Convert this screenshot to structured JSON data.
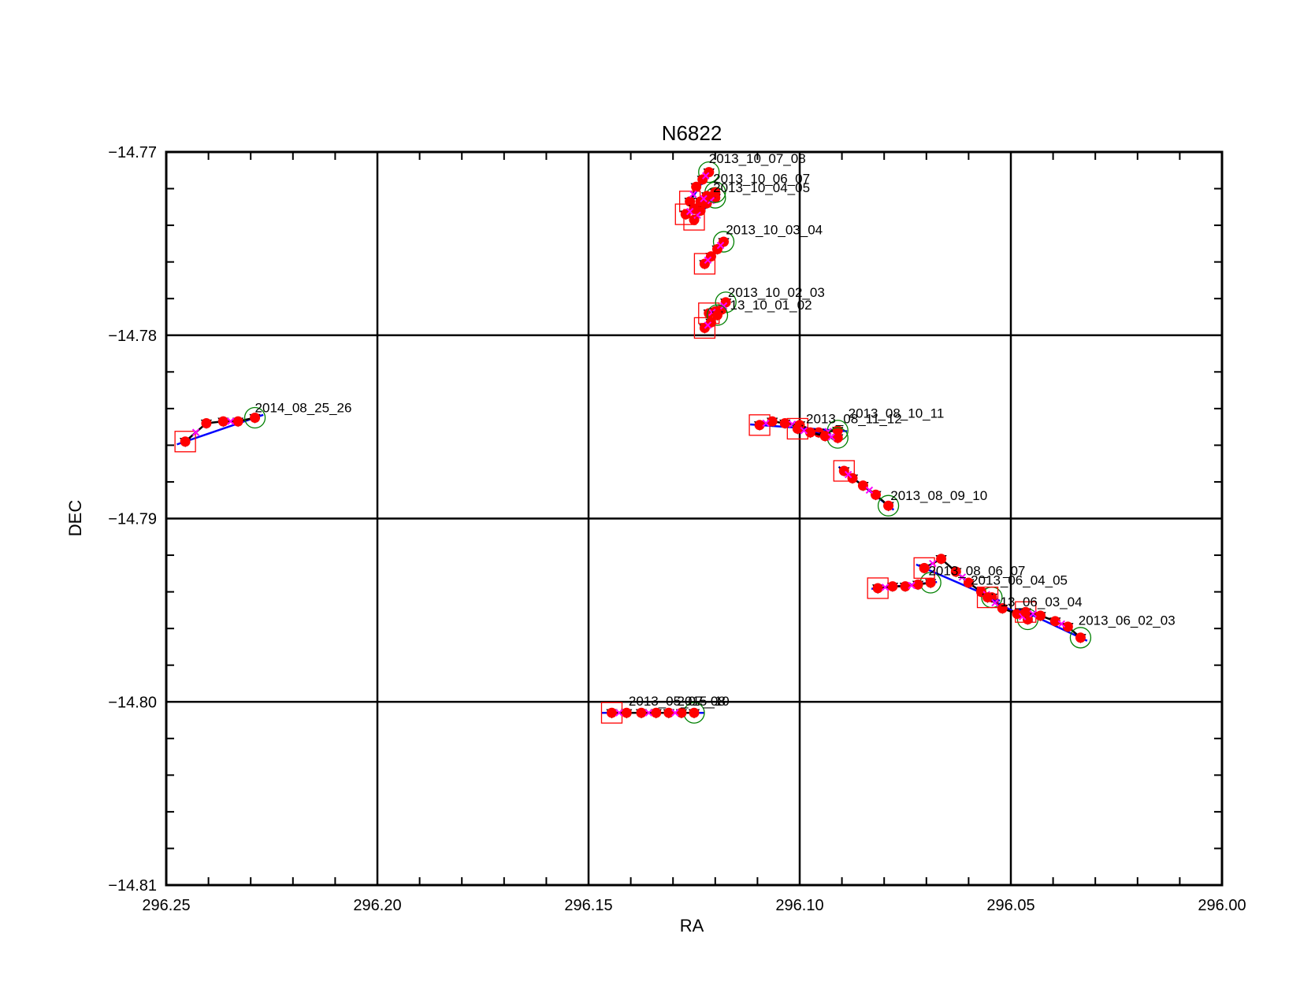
{
  "chart_data": {
    "type": "scatter",
    "title": "N6822",
    "xlabel": "RA",
    "ylabel": "DEC",
    "xlim": [
      296.25,
      296.0
    ],
    "ylim": [
      -14.81,
      -14.77
    ],
    "x_ticks": [
      296.25,
      296.2,
      296.15,
      296.1,
      296.05,
      296.0
    ],
    "x_tick_labels": [
      "296.25",
      "296.20",
      "296.15",
      "296.10",
      "296.05",
      "296.00"
    ],
    "y_ticks": [
      -14.77,
      -14.78,
      -14.79,
      -14.8,
      -14.81
    ],
    "y_tick_labels": [
      "−14.77",
      "−14.78",
      "−14.79",
      "−14.80",
      "−14.81"
    ],
    "grid": true,
    "colors": {
      "points": "#ff0000",
      "track": "#000000",
      "fit_line": "#0000ff",
      "start_box": "#ff0000",
      "end_circle": "#008000",
      "cross": "#ff00ff"
    },
    "series": [
      {
        "label": "2014_08_25_26",
        "x": [
          296.2455,
          296.2405,
          296.2365,
          296.233,
          296.229
        ],
        "y": [
          -14.7858,
          -14.7848,
          -14.7847,
          -14.7847,
          -14.7845
        ]
      },
      {
        "label": "2013_10_07_08",
        "x": [
          296.126,
          296.1245,
          296.123,
          296.1215
        ],
        "y": [
          -14.7727,
          -14.7719,
          -14.7715,
          -14.7711
        ]
      },
      {
        "label": "2013_10_06_07",
        "x": [
          296.125,
          296.1235,
          296.122,
          296.12
        ],
        "y": [
          -14.7737,
          -14.7732,
          -14.7728,
          -14.7725
        ]
      },
      {
        "label": "2013_10_04_05",
        "x": [
          296.127,
          296.125,
          296.1235,
          296.122,
          296.12
        ],
        "y": [
          -14.7734,
          -14.7731,
          -14.7727,
          -14.7724,
          -14.7722
        ]
      },
      {
        "label": "2013_10_03_04",
        "x": [
          296.1225,
          296.121,
          296.1195,
          296.118
        ],
        "y": [
          -14.7761,
          -14.7757,
          -14.7753,
          -14.7749
        ]
      },
      {
        "label": "2013_10_02_03",
        "x": [
          296.1215,
          296.12,
          296.1185,
          296.1175
        ],
        "y": [
          -14.7788,
          -14.7787,
          -14.7786,
          -14.7782
        ]
      },
      {
        "label": "13_10_01_02",
        "x": [
          296.1225,
          296.121,
          296.1195
        ],
        "y": [
          -14.7796,
          -14.7793,
          -14.7789
        ]
      },
      {
        "label": "2013_08_10_11",
        "x": [
          296.1095,
          296.1065,
          296.1035,
          296.1,
          296.0955,
          296.091
        ],
        "y": [
          -14.7849,
          -14.7847,
          -14.7848,
          -14.7849,
          -14.7853,
          -14.7852
        ]
      },
      {
        "label": "2013_08_11_12",
        "x": [
          296.1005,
          296.0975,
          296.094,
          296.091
        ],
        "y": [
          -14.7851,
          -14.7853,
          -14.7855,
          -14.7856
        ]
      },
      {
        "label": "2013_08_09_10",
        "x": [
          296.0895,
          296.0875,
          296.085,
          296.082,
          296.079
        ],
        "y": [
          -14.7874,
          -14.7878,
          -14.7882,
          -14.7887,
          -14.7893
        ]
      },
      {
        "label": "2013_08_06_07",
        "x": [
          296.0815,
          296.078,
          296.075,
          296.072,
          296.069
        ],
        "y": [
          -14.7938,
          -14.7937,
          -14.7937,
          -14.7936,
          -14.7935
        ]
      },
      {
        "label": "2013_06_04_05",
        "x": [
          296.0705,
          296.0665,
          296.063,
          296.06,
          296.057,
          296.0545
        ],
        "y": [
          -14.7927,
          -14.7922,
          -14.7929,
          -14.7935,
          -14.794,
          -14.7943
        ]
      },
      {
        "label": "2013_06_03_04",
        "x": [
          296.0555,
          296.052,
          296.0485,
          296.046
        ],
        "y": [
          -14.7943,
          -14.7949,
          -14.7952,
          -14.7955
        ]
      },
      {
        "label": "2013_06_02_03",
        "x": [
          296.0465,
          296.043,
          296.0395,
          296.0365,
          296.0335
        ],
        "y": [
          -14.7951,
          -14.7953,
          -14.7956,
          -14.7959,
          -14.7965
        ]
      },
      {
        "label": "2013_05_07_08",
        "x": [
          296.1445,
          296.141,
          296.1375,
          296.134,
          296.131,
          296.128,
          296.125
        ],
        "y": [
          -14.8006,
          -14.8006,
          -14.8006,
          -14.8006,
          -14.8006,
          -14.8006,
          -14.8006
        ]
      }
    ],
    "annotations": [
      {
        "text": "2014_08_25_26",
        "x": 296.229,
        "y": -14.7842
      },
      {
        "text": "2013_10_07_08",
        "x": 296.1215,
        "y": -14.7706
      },
      {
        "text": "2013_10_06_07",
        "x": 296.1205,
        "y": -14.7717
      },
      {
        "text": "2013_10_04_05",
        "x": 296.1205,
        "y": -14.7722
      },
      {
        "text": "2013_10_03_04",
        "x": 296.1175,
        "y": -14.7745
      },
      {
        "text": "2013_10_02_03",
        "x": 296.117,
        "y": -14.7779
      },
      {
        "text": "13_10_01_02",
        "x": 296.1165,
        "y": -14.7786
      },
      {
        "text": "2013_08_10_11",
        "x": 296.0885,
        "y": -14.7845
      },
      {
        "text": "2013_08_11_12",
        "x": 296.0985,
        "y": -14.7848
      },
      {
        "text": "2013_08_09_10",
        "x": 296.0785,
        "y": -14.789
      },
      {
        "text": "2013_08_06_07",
        "x": 296.0695,
        "y": -14.7931
      },
      {
        "text": "2013_06_04_05",
        "x": 296.0595,
        "y": -14.7936
      },
      {
        "text": "13_06_03_04",
        "x": 296.0525,
        "y": -14.7948
      },
      {
        "text": "2013_06_02_03",
        "x": 296.034,
        "y": -14.7958
      },
      {
        "text": "2013_05_07_08",
        "x": 296.1405,
        "y": -14.8002
      },
      {
        "text": "2015_10",
        "x": 296.129,
        "y": -14.8002
      }
    ]
  }
}
